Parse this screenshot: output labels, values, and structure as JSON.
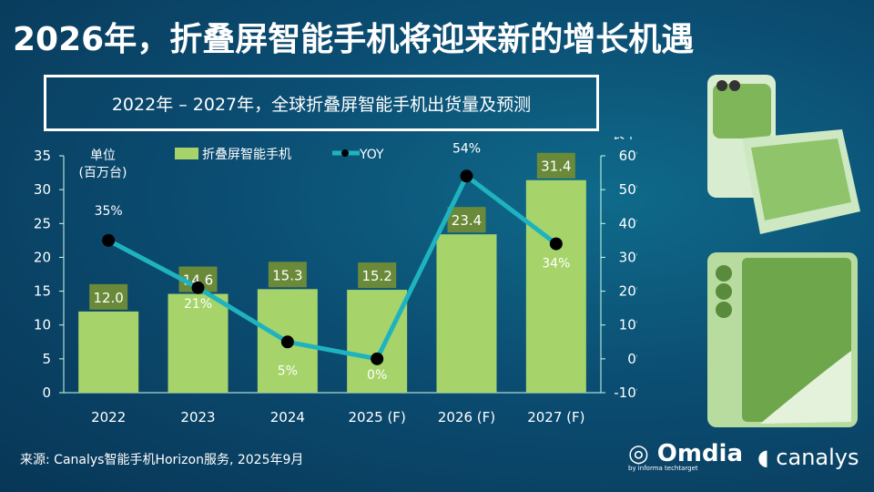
{
  "title": "2026年，折叠屏智能手机将迎来新的增长机遇",
  "subtitle": "2022年 – 2027年，全球折叠屏智能手机出货量及预测",
  "source": "来源: Canalys智能手机Horizon服务, 2025年9月",
  "logos": {
    "omdia": "Omdia",
    "omdia_sub": "by informa techtarget",
    "canalys": "canalys"
  },
  "colors": {
    "bar": "#a6d46a",
    "label_bg": "#6a8a3a",
    "line": "#1fb3c0",
    "marker": "#000000"
  },
  "chart_data": {
    "type": "bar+line",
    "categories": [
      "2022",
      "2023",
      "2024",
      "2025 (F)",
      "2026 (F)",
      "2027 (F)"
    ],
    "series": [
      {
        "name": "折叠屏智能手机",
        "type": "bar",
        "axis": "left",
        "values": [
          12.0,
          14.6,
          15.3,
          15.2,
          23.4,
          31.4
        ],
        "labels": [
          "12.0",
          "14.6",
          "15.3",
          "15.2",
          "23.4",
          "31.4"
        ]
      },
      {
        "name": "YOY",
        "type": "line",
        "axis": "right",
        "values": [
          35,
          21,
          5,
          0,
          54,
          34
        ],
        "labels": [
          "35%",
          "21%",
          "5%",
          "0%",
          "54%",
          "34%"
        ]
      }
    ],
    "left_axis": {
      "label_line1": "单位",
      "label_line2": "(百万台)",
      "ylim": [
        0,
        35
      ],
      "ticks": [
        "0",
        "5",
        "10",
        "15",
        "20",
        "25",
        "30",
        "35"
      ]
    },
    "right_axis": {
      "label_line1": "年增",
      "label_line2": "长率",
      "ylim": [
        -10,
        60
      ],
      "ticks": [
        "-10%",
        "0%",
        "10%",
        "20%",
        "30%",
        "40%",
        "50%",
        "60%"
      ]
    },
    "legend": "top",
    "grid": false
  }
}
